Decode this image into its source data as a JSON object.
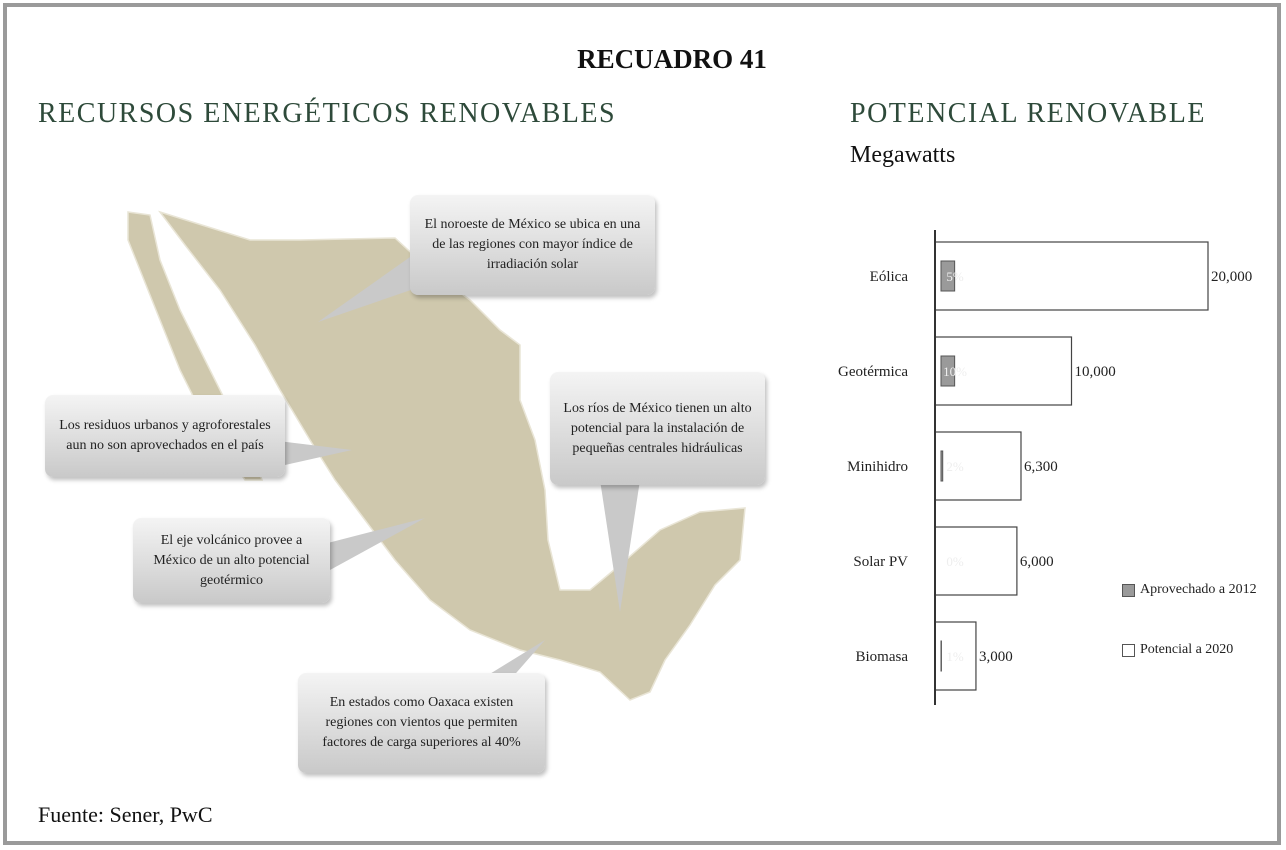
{
  "header": {
    "title": "RECUADRO 41",
    "left_heading": "RECURSOS ENERGÉTICOS RENOVABLES"
  },
  "callouts": [
    "El noroeste de México se ubica en una de las regiones con mayor índice de irradiación solar",
    "Los residuos urbanos y agroforestales aun no son aprovechados en el país",
    "El eje volcánico provee a México de un alto potencial geotérmico",
    "Los ríos de México tienen un alto potencial para la instalación de pequeñas centrales hidráulicas",
    "En estados como Oaxaca existen regiones con vientos que permiten factores de carga superiores al 40%"
  ],
  "chart_data": {
    "type": "hbar",
    "title": "POTENCIAL RENOVABLE",
    "subtitle": "Megawatts",
    "categories": [
      "Eólica",
      "Geotérmica",
      "Minihidro",
      "Solar PV",
      "Biomasa"
    ],
    "series": [
      {
        "name": "Aprovechado a 2012",
        "color": "#9a9a9a",
        "values": [
          5,
          10,
          2,
          0,
          1
        ],
        "value_labels": [
          "5%",
          "10%",
          "2%",
          "0%",
          "1%"
        ]
      },
      {
        "name": "Potencial a 2020",
        "color": "#ffffff",
        "values": [
          20000,
          10000,
          6300,
          6000,
          3000
        ],
        "value_labels": [
          "20,000",
          "10,000",
          "6,300",
          "6,000",
          "3,000"
        ]
      }
    ]
  },
  "footer": {
    "source": "Fuente: Sener, PwC"
  }
}
